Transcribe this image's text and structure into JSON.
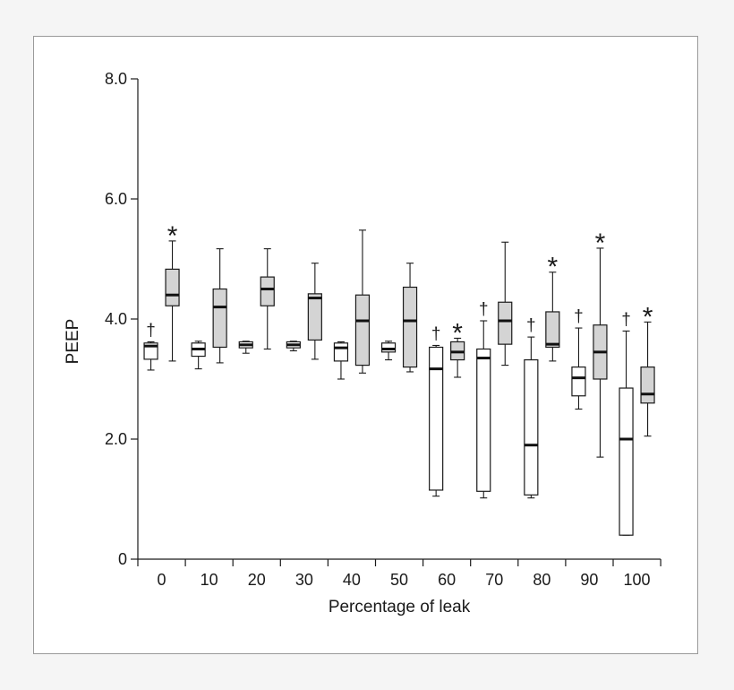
{
  "chart_data": {
    "type": "box",
    "title": "",
    "xlabel": "Percentage of leak",
    "ylabel": "PEEP",
    "ylim": [
      0,
      8.0
    ],
    "y_ticks": [
      {
        "value": 0,
        "label": "0"
      },
      {
        "value": 2.0,
        "label": "2.0"
      },
      {
        "value": 4.0,
        "label": "4.0"
      },
      {
        "value": 6.0,
        "label": "6.0"
      },
      {
        "value": 8.0,
        "label": "8.0"
      }
    ],
    "categories": [
      "0",
      "10",
      "20",
      "30",
      "40",
      "50",
      "60",
      "70",
      "80",
      "90",
      "100"
    ],
    "grid": false,
    "legend": "none",
    "series": [
      {
        "fill": "#ffffff",
        "boxes": [
          {
            "min": 3.15,
            "q1": 3.33,
            "median": 3.55,
            "q3": 3.6,
            "max": 3.62,
            "mark": "†"
          },
          {
            "min": 3.17,
            "q1": 3.38,
            "median": 3.5,
            "q3": 3.6,
            "max": 3.63,
            "mark": ""
          },
          {
            "min": 3.43,
            "q1": 3.52,
            "median": 3.57,
            "q3": 3.62,
            "max": 3.63,
            "mark": ""
          },
          {
            "min": 3.47,
            "q1": 3.52,
            "median": 3.57,
            "q3": 3.62,
            "max": 3.63,
            "mark": ""
          },
          {
            "min": 3.0,
            "q1": 3.3,
            "median": 3.52,
            "q3": 3.6,
            "max": 3.62,
            "mark": ""
          },
          {
            "min": 3.32,
            "q1": 3.45,
            "median": 3.5,
            "q3": 3.6,
            "max": 3.63,
            "mark": ""
          },
          {
            "min": 1.05,
            "q1": 1.15,
            "median": 3.17,
            "q3": 3.53,
            "max": 3.56,
            "mark": "†"
          },
          {
            "min": 1.02,
            "q1": 1.13,
            "median": 3.35,
            "q3": 3.5,
            "max": 3.97,
            "mark": "†"
          },
          {
            "min": 1.02,
            "q1": 1.07,
            "median": 1.9,
            "q3": 3.32,
            "max": 3.7,
            "mark": "†"
          },
          {
            "min": 2.5,
            "q1": 2.72,
            "median": 3.02,
            "q3": 3.2,
            "max": 3.85,
            "mark": "†"
          },
          {
            "min": 0.4,
            "q1": 0.4,
            "median": 2.0,
            "q3": 2.85,
            "max": 3.8,
            "mark": "†"
          }
        ]
      },
      {
        "fill": "#d4d4d4",
        "boxes": [
          {
            "min": 3.3,
            "q1": 4.22,
            "median": 4.4,
            "q3": 4.83,
            "max": 5.3,
            "mark": "*"
          },
          {
            "min": 3.27,
            "q1": 3.53,
            "median": 4.2,
            "q3": 4.5,
            "max": 5.17,
            "mark": ""
          },
          {
            "min": 3.5,
            "q1": 4.22,
            "median": 4.5,
            "q3": 4.7,
            "max": 5.17,
            "mark": ""
          },
          {
            "min": 3.33,
            "q1": 3.65,
            "median": 4.35,
            "q3": 4.42,
            "max": 4.93,
            "mark": ""
          },
          {
            "min": 3.1,
            "q1": 3.23,
            "median": 3.97,
            "q3": 4.4,
            "max": 5.48,
            "mark": ""
          },
          {
            "min": 3.12,
            "q1": 3.2,
            "median": 3.97,
            "q3": 4.53,
            "max": 4.93,
            "mark": ""
          },
          {
            "min": 3.03,
            "q1": 3.32,
            "median": 3.45,
            "q3": 3.62,
            "max": 3.68,
            "mark": "*"
          },
          {
            "min": 3.23,
            "q1": 3.58,
            "median": 3.97,
            "q3": 4.28,
            "max": 5.28,
            "mark": ""
          },
          {
            "min": 3.3,
            "q1": 3.53,
            "median": 3.58,
            "q3": 4.12,
            "max": 4.78,
            "mark": "*"
          },
          {
            "min": 1.7,
            "q1": 3.0,
            "median": 3.45,
            "q3": 3.9,
            "max": 5.18,
            "mark": "*"
          },
          {
            "min": 2.05,
            "q1": 2.6,
            "median": 2.75,
            "q3": 3.2,
            "max": 3.95,
            "mark": "*"
          }
        ]
      }
    ]
  }
}
